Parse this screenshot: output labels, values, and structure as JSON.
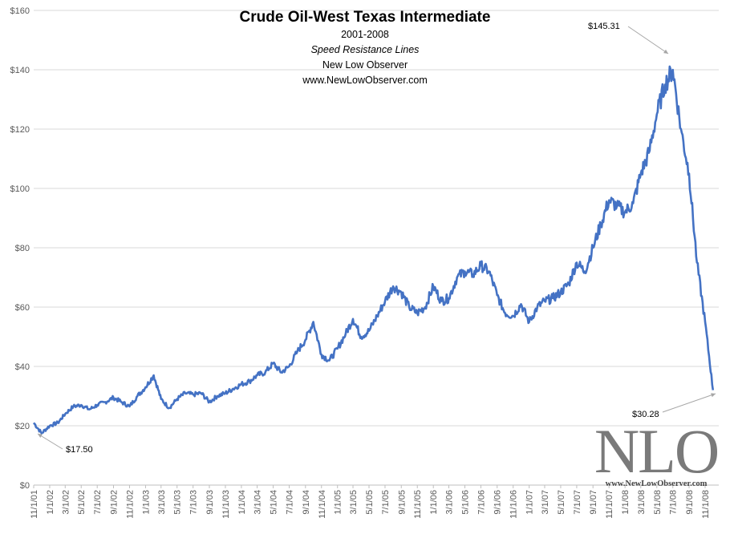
{
  "chart_data": {
    "type": "line",
    "title": "Crude Oil-West Texas Intermediate",
    "subtitles": [
      "2001-2008",
      "Speed Resistance Lines",
      "New Low Observer",
      "www.NewLowObserver.com"
    ],
    "xlabel": "",
    "ylabel": "",
    "ylim": [
      0,
      160
    ],
    "y_ticks": [
      "$0",
      "$20",
      "$40",
      "$60",
      "$80",
      "$100",
      "$120",
      "$140",
      "$160"
    ],
    "x_ticks": [
      "11/1/01",
      "1/1/02",
      "3/1/02",
      "5/1/02",
      "7/1/02",
      "9/1/02",
      "11/1/02",
      "1/1/03",
      "3/1/03",
      "5/1/03",
      "7/1/03",
      "9/1/03",
      "11/1/03",
      "1/1/04",
      "3/1/04",
      "5/1/04",
      "7/1/04",
      "9/1/04",
      "11/1/04",
      "1/1/05",
      "3/1/05",
      "5/1/05",
      "7/1/05",
      "9/1/05",
      "11/1/05",
      "1/1/06",
      "3/1/06",
      "5/1/06",
      "7/1/06",
      "9/1/06",
      "11/1/06",
      "1/1/07",
      "3/1/07",
      "5/1/07",
      "7/1/07",
      "9/1/07",
      "11/1/07",
      "1/1/08",
      "3/1/08",
      "5/1/08",
      "7/1/08",
      "9/1/08",
      "11/1/08"
    ],
    "grid": true,
    "line_color": "#4472C4",
    "series": [
      {
        "x": [
          "11/1/01",
          "12/1/01",
          "1/1/02",
          "2/1/02",
          "3/1/02",
          "4/1/02",
          "5/1/02",
          "6/1/02",
          "7/1/02",
          "8/1/02",
          "9/1/02",
          "10/1/02",
          "11/1/02",
          "12/1/02",
          "1/1/03",
          "2/1/03",
          "3/1/03",
          "4/1/03",
          "5/1/03",
          "6/1/03",
          "7/1/03",
          "8/1/03",
          "9/1/03",
          "10/1/03",
          "11/1/03",
          "12/1/03",
          "1/1/04",
          "2/1/04",
          "3/1/04",
          "4/1/04",
          "5/1/04",
          "6/1/04",
          "7/1/04",
          "8/1/04",
          "9/1/04",
          "10/1/04",
          "11/1/04",
          "12/1/04",
          "1/1/05",
          "2/1/05",
          "3/1/05",
          "4/1/05",
          "5/1/05",
          "6/1/05",
          "7/1/05",
          "8/1/05",
          "9/1/05",
          "10/1/05",
          "11/1/05",
          "12/1/05",
          "1/1/06",
          "2/1/06",
          "3/1/06",
          "4/1/06",
          "5/1/06",
          "6/1/06",
          "7/1/06",
          "8/1/06",
          "9/1/06",
          "10/1/06",
          "11/1/06",
          "12/1/06",
          "1/1/07",
          "2/1/07",
          "3/1/07",
          "4/1/07",
          "5/1/07",
          "6/1/07",
          "7/1/07",
          "8/1/07",
          "9/1/07",
          "10/1/07",
          "11/1/07",
          "12/1/07",
          "1/1/08",
          "2/1/08",
          "3/1/08",
          "4/1/08",
          "5/1/08",
          "6/1/08",
          "7/1/08",
          "8/1/08",
          "9/1/08",
          "10/1/08",
          "11/1/08",
          "12/1/08"
        ],
        "values": [
          21,
          17.5,
          20,
          21,
          24,
          26.5,
          27,
          25.5,
          27,
          28,
          29.5,
          28,
          26.5,
          30,
          33,
          37,
          29,
          26,
          29,
          31,
          30.5,
          31,
          28,
          30,
          31,
          32.5,
          34,
          35,
          37,
          38,
          41,
          38,
          40,
          45,
          49,
          55,
          44,
          42,
          46,
          51,
          56,
          50,
          52,
          57,
          62,
          67,
          65,
          60,
          58,
          60,
          67,
          62,
          63,
          70,
          72,
          71,
          74,
          72,
          64,
          58,
          57,
          61,
          55,
          60,
          62,
          63,
          65,
          68,
          75,
          72,
          80,
          88,
          96,
          94,
          92,
          95,
          105,
          112,
          125,
          135,
          140,
          120,
          105,
          75,
          55,
          32
        ]
      }
    ],
    "annotations": [
      {
        "text": "$145.31",
        "x": "7/3/08",
        "y": 145.31
      },
      {
        "text": "$17.50",
        "x": "11/15/01",
        "y": 17.5
      },
      {
        "text": "$30.28",
        "x": "12/19/08",
        "y": 30.28
      }
    ]
  },
  "logo": {
    "letters": "NLO",
    "url": "www.NewLowObserver.com"
  }
}
